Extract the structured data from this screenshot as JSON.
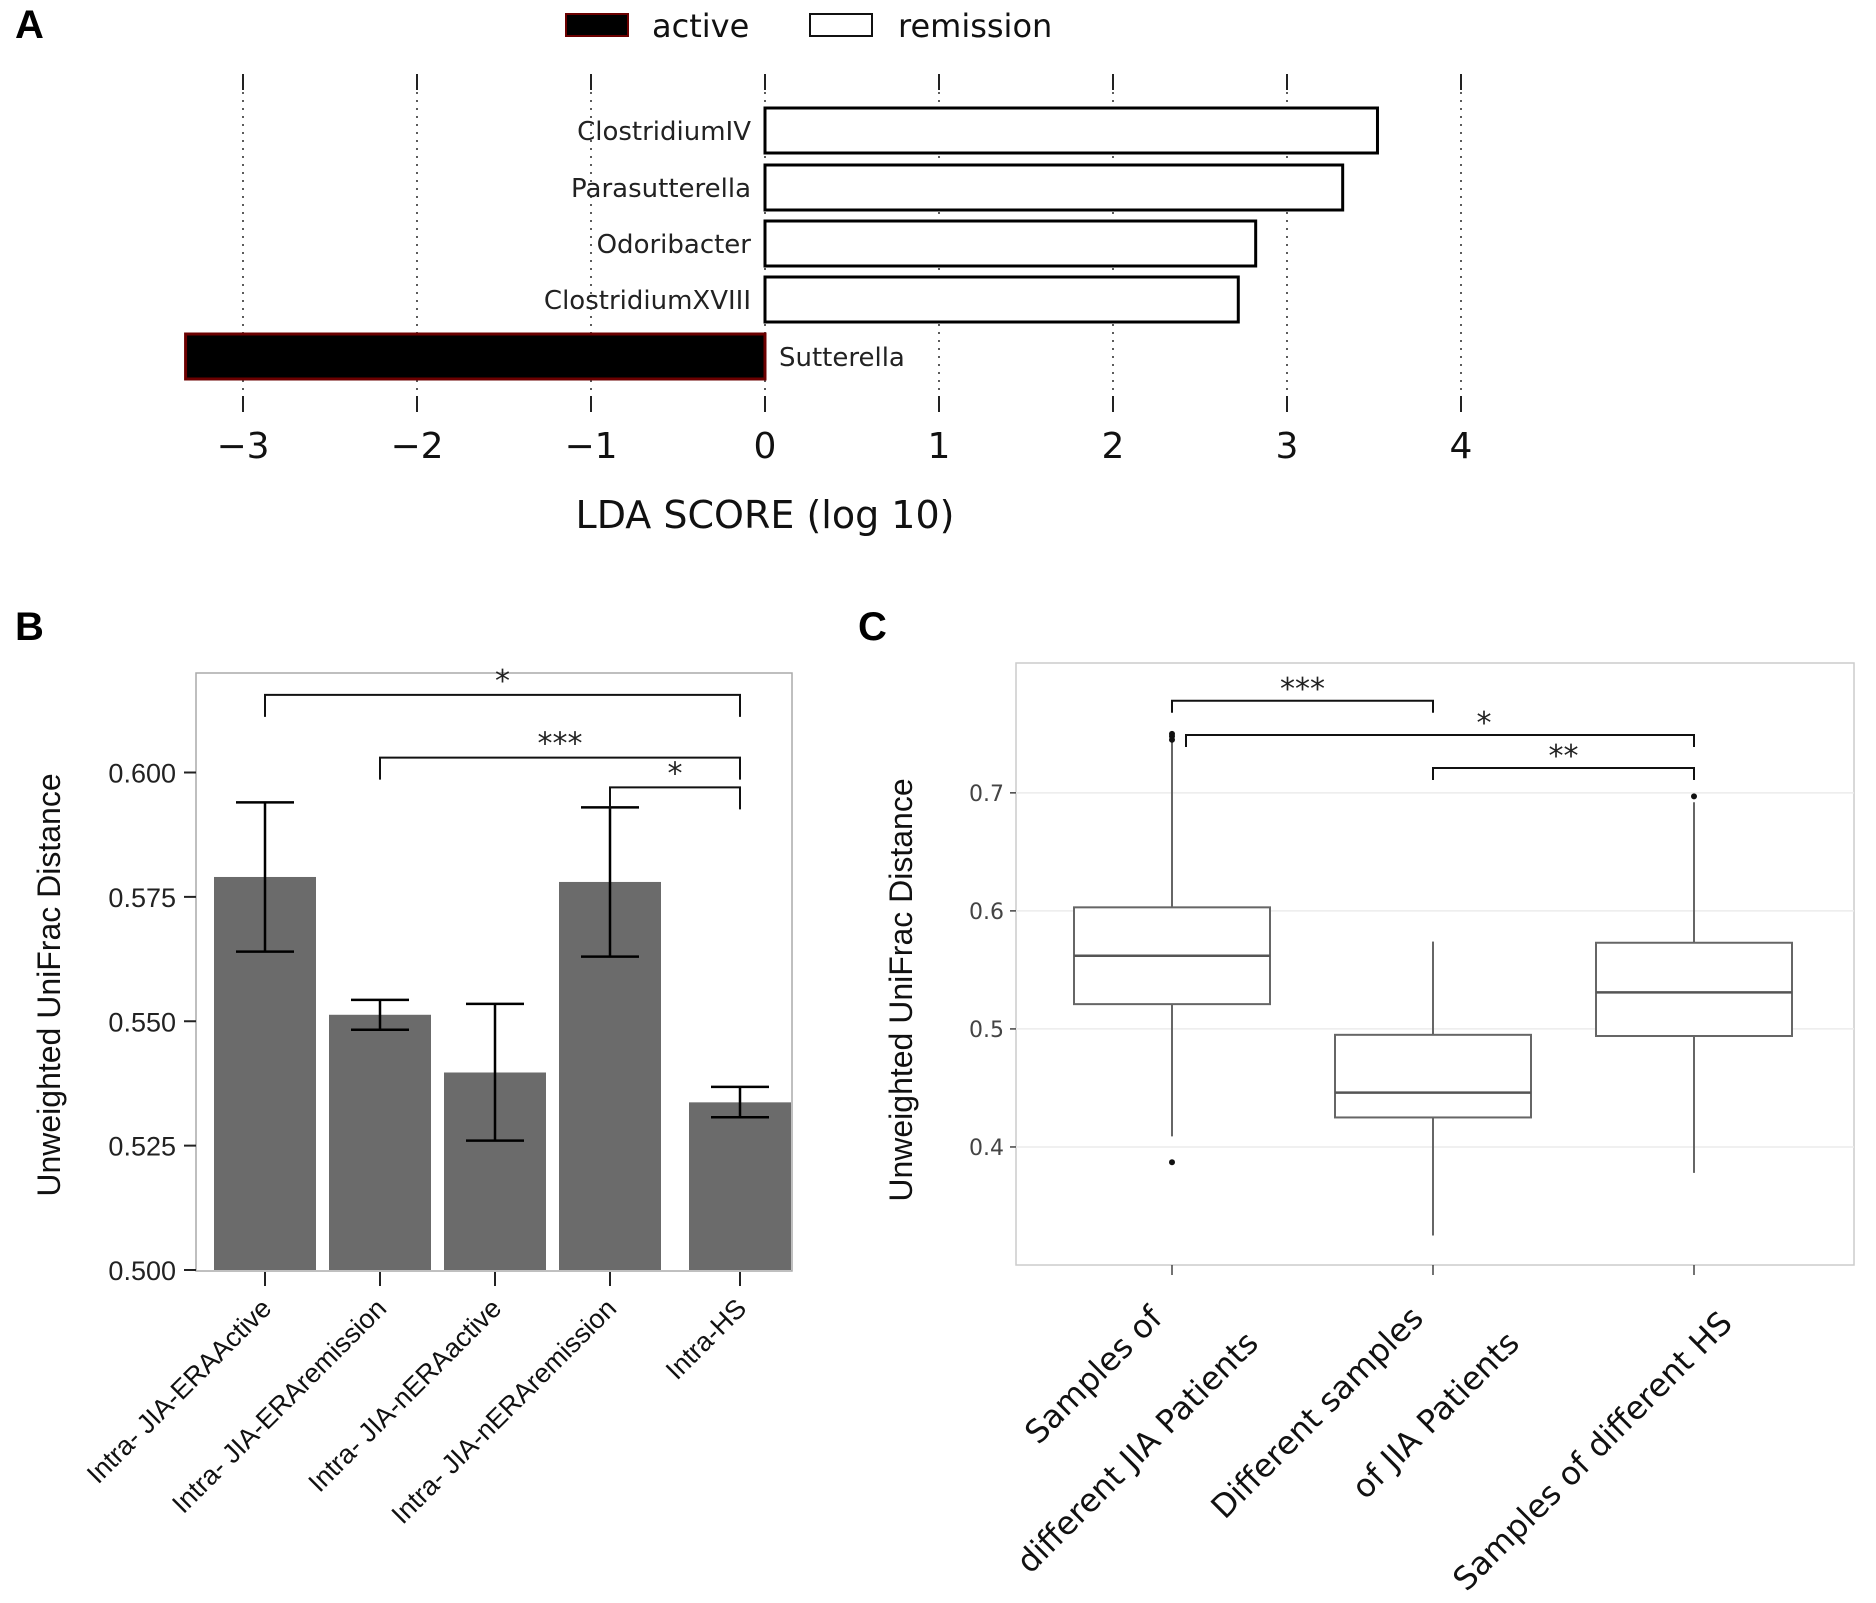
{
  "chart_data": [
    {
      "panel": "A",
      "type": "bar",
      "orientation": "horizontal",
      "title": "",
      "xlabel": "LDA SCORE (log 10)",
      "ylabel": "",
      "xlim": [
        -3.3,
        4
      ],
      "xticks": [
        "−3",
        "−2",
        "−1",
        "0",
        "1",
        "2",
        "3",
        "4"
      ],
      "xtick_values": [
        -3,
        -2,
        -1,
        0,
        1,
        2,
        3,
        4
      ],
      "grid": "vertical dotted",
      "legend": [
        {
          "label": "active",
          "color": "#000000"
        },
        {
          "label": "remission",
          "color": "#ffffff"
        }
      ],
      "legend_position": "top-center",
      "categories": [
        "ClostridiumIV",
        "Parasutterella",
        "Odoribacter",
        "ClostridiumXVIII",
        "Sutterella"
      ],
      "values": [
        3.52,
        3.32,
        2.82,
        2.72,
        -3.33
      ],
      "groups": [
        "remission",
        "remission",
        "remission",
        "remission",
        "active"
      ]
    },
    {
      "panel": "B",
      "type": "bar",
      "title": "",
      "xlabel": "",
      "ylabel": "Unweighted UniFrac Distance",
      "ylim": [
        0.5,
        0.62
      ],
      "yticks": [
        "0.500",
        "0.525",
        "0.550",
        "0.575",
        "0.600"
      ],
      "ytick_values": [
        0.5,
        0.525,
        0.55,
        0.575,
        0.6
      ],
      "categories": [
        "Intra- JIA-ERAActive",
        "Intra- JIA-ERAremission",
        "Intra- JIA-nERAactive",
        "Intra- JIA-nERAremission",
        "Intra-HS"
      ],
      "values": [
        0.579,
        0.5513,
        0.5397,
        0.578,
        0.5337
      ],
      "error_low": [
        0.564,
        0.5483,
        0.526,
        0.563,
        0.5307
      ],
      "error_high": [
        0.594,
        0.5543,
        0.5535,
        0.593,
        0.5368
      ],
      "bar_color": "#6b6b6b",
      "significance": [
        {
          "from": 0,
          "to": 4,
          "label": "*",
          "level": 0.6156
        },
        {
          "from": 1,
          "to": 4,
          "label": "***",
          "level": 0.603
        },
        {
          "from": 3,
          "to": 4,
          "label": "*",
          "level": 0.597
        }
      ]
    },
    {
      "panel": "C",
      "type": "box",
      "title": "",
      "xlabel": "",
      "ylabel": "Unweighted UniFrac Distance",
      "ylim": [
        0.3,
        0.81
      ],
      "yticks": [
        "0.4",
        "0.5",
        "0.6",
        "0.7"
      ],
      "ytick_values": [
        0.4,
        0.5,
        0.6,
        0.7
      ],
      "categories": [
        [
          "Samples of",
          "different JIA Patients"
        ],
        [
          "Different samples",
          "of JIA Patients"
        ],
        [
          "Samples of different HS"
        ]
      ],
      "boxes": [
        {
          "whisker_low": 0.409,
          "q1": 0.521,
          "median": 0.562,
          "q3": 0.603,
          "whisker_high": 0.745,
          "outliers": [
            0.387,
            0.75,
            0.748,
            0.745
          ]
        },
        {
          "whisker_low": 0.325,
          "q1": 0.425,
          "median": 0.446,
          "q3": 0.495,
          "whisker_high": 0.574,
          "outliers": []
        },
        {
          "whisker_low": 0.378,
          "q1": 0.494,
          "median": 0.531,
          "q3": 0.573,
          "whisker_high": 0.692,
          "outliers": [
            0.697
          ]
        }
      ],
      "significance": [
        {
          "from": 0,
          "to": 1,
          "label": "***",
          "level": 0.778
        },
        {
          "from": 0,
          "to": 2,
          "label": "*",
          "level": 0.749
        },
        {
          "from": 1,
          "to": 2,
          "label": "**",
          "level": 0.721
        }
      ]
    }
  ],
  "panels": {
    "a": "A",
    "b": "B",
    "c": "C"
  }
}
